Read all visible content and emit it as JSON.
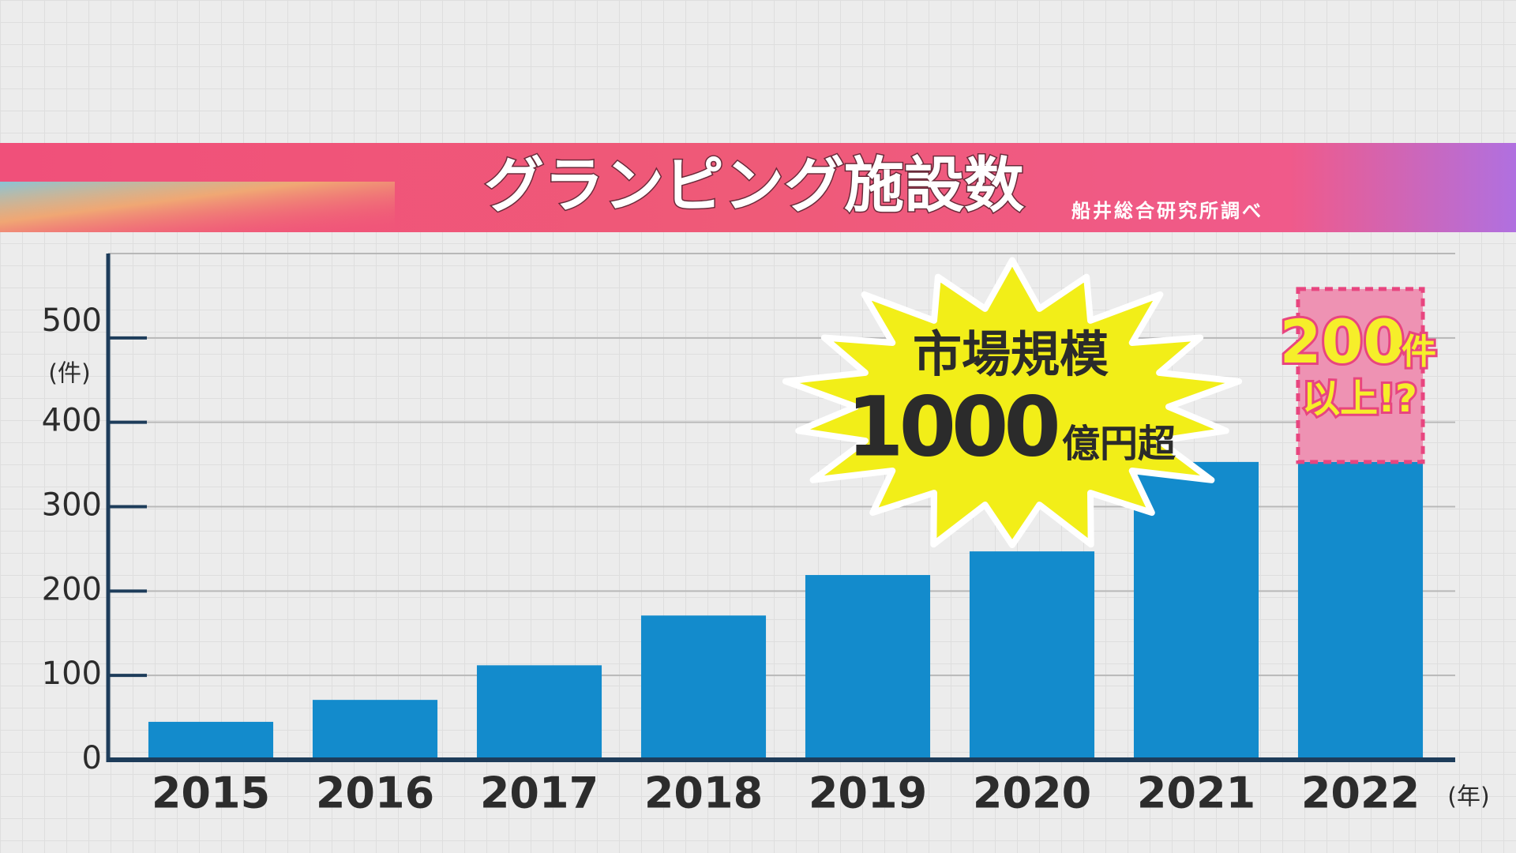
{
  "chart_data": {
    "type": "bar",
    "title": "グランピング施設数",
    "source": "船井総合研究所調べ",
    "y_unit": "(件)",
    "x_unit": "(年)",
    "categories": [
      "2015",
      "2016",
      "2017",
      "2018",
      "2019",
      "2020",
      "2021",
      "2022"
    ],
    "stacked": true,
    "series": [
      {
        "color": "#138bcc",
        "values": [
          45,
          71,
          112,
          171,
          219,
          247,
          353,
          353
        ]
      },
      {
        "color": "#ee92b3",
        "border": "#e8457f",
        "dashed": true,
        "values": [
          null,
          null,
          null,
          null,
          null,
          null,
          null,
          205
        ]
      }
    ],
    "ylim": [
      0,
      600
    ],
    "yticks": [
      0,
      100,
      200,
      300,
      400,
      500
    ],
    "grid": true,
    "annotations": {
      "burst": [
        "市場規模",
        "1000",
        "億円超"
      ],
      "projection": [
        "200",
        "件",
        "以上!?"
      ]
    }
  }
}
